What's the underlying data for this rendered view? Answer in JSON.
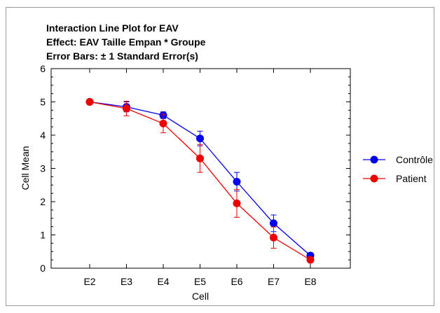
{
  "chart_data": {
    "type": "line",
    "title": "Interaction Line Plot for EAV",
    "subtitle": "Effect: EAV Taille Empan  * Groupe",
    "note": "Error Bars: ± 1 Standard Error(s)",
    "xlabel": "Cell",
    "ylabel": "Cell Mean",
    "categories": [
      "E2",
      "E3",
      "E4",
      "E5",
      "E6",
      "E7",
      "E8"
    ],
    "yticks": [
      "0",
      "1",
      "2",
      "3",
      "4",
      "5",
      "6"
    ],
    "ylim": [
      0,
      6
    ],
    "grid": false,
    "legend": "right",
    "series": [
      {
        "name": "Contrôle",
        "color": "#0000ee",
        "values": [
          5.0,
          4.85,
          4.6,
          3.9,
          2.6,
          1.35,
          0.38
        ],
        "se": [
          0.07,
          0.15,
          0.1,
          0.22,
          0.28,
          0.25,
          0.08
        ]
      },
      {
        "name": "Patient",
        "color": "#ee0000",
        "values": [
          5.0,
          4.8,
          4.35,
          3.3,
          1.95,
          0.92,
          0.25
        ],
        "se": [
          0.06,
          0.22,
          0.28,
          0.42,
          0.42,
          0.32,
          0.07
        ]
      }
    ]
  }
}
